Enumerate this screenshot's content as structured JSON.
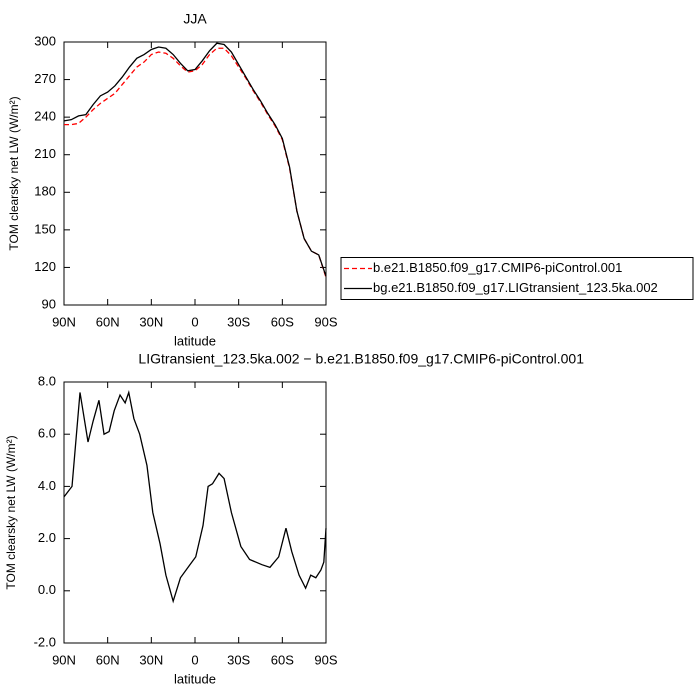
{
  "chart_data": [
    {
      "type": "line",
      "title": "JJA",
      "xlabel": "latitude",
      "ylabel": "TOM clearsky net LW (W/m²)",
      "x": [
        90,
        85,
        80,
        75,
        70,
        65,
        60,
        55,
        50,
        45,
        40,
        35,
        30,
        25,
        20,
        15,
        10,
        5,
        0,
        -5,
        -10,
        -15,
        -20,
        -25,
        -30,
        -35,
        -40,
        -45,
        -50,
        -55,
        -60,
        -65,
        -70,
        -75,
        -80,
        -85,
        -90
      ],
      "series": [
        {
          "name": "b.e21.B1850.f09_g17.CMIP6-piControl.001",
          "color": "#ff0000",
          "linestyle": "dashed",
          "values": [
            234,
            234,
            235,
            240,
            246,
            251,
            255,
            259,
            266,
            273,
            280,
            284,
            290,
            292,
            291,
            287,
            281,
            276,
            277,
            282,
            290,
            295,
            295,
            289,
            280,
            271,
            261,
            252,
            242,
            233,
            222,
            199,
            165,
            143,
            133,
            130,
            112
          ]
        },
        {
          "name": "bg.e21.B1850.f09_g17.LIGtransient_123.5ka.002",
          "color": "#000000",
          "linestyle": "solid",
          "values": [
            237,
            238,
            241,
            242,
            250,
            257,
            260,
            265,
            272,
            280,
            287,
            290,
            294,
            296,
            295,
            290,
            283,
            277,
            278,
            285,
            293,
            299,
            298,
            292,
            282,
            272,
            262,
            253,
            243,
            234,
            223,
            200,
            165,
            143,
            133,
            130,
            113
          ]
        }
      ],
      "xlim": [
        90,
        -90
      ],
      "xticks": [
        {
          "value": 90,
          "label": "90N"
        },
        {
          "value": 60,
          "label": "60N"
        },
        {
          "value": 30,
          "label": "30N"
        },
        0,
        {
          "value": -30,
          "label": "30S"
        },
        {
          "value": -60,
          "label": "60S"
        },
        {
          "value": -90,
          "label": "90S"
        }
      ],
      "ylim": [
        90,
        300
      ],
      "yticks": [
        90,
        120,
        150,
        180,
        210,
        240,
        270,
        300
      ],
      "legend": "right"
    },
    {
      "type": "line",
      "title": "LIGtransient_123.5ka.002 − b.e21.B1850.f09_g17.CMIP6-piControl.001",
      "xlabel": "latitude",
      "ylabel": "TOM clearsky net LW (W/m²)",
      "x": [
        90,
        84.5,
        79,
        73.5,
        70,
        66,
        62.5,
        59,
        55.5,
        51.5,
        48,
        45.5,
        42,
        38,
        33,
        29,
        24,
        20,
        17,
        15,
        10,
        3.5,
        -0.5,
        -5.5,
        -9,
        -12,
        -16.5,
        -20,
        -25,
        -31.5,
        -37.5,
        -46,
        -51.5,
        -57.5,
        -62.5,
        -66.5,
        -71.5,
        -76,
        -79.5,
        -83,
        -86.5,
        -88.5,
        -90
      ],
      "values": [
        3.6,
        4.0,
        7.6,
        5.7,
        6.5,
        7.3,
        6.0,
        6.1,
        6.9,
        7.5,
        7.2,
        7.6,
        6.6,
        6.0,
        4.8,
        3.0,
        1.8,
        0.6,
        0.0,
        -0.4,
        0.5,
        1.0,
        1.3,
        2.5,
        4.0,
        4.1,
        4.5,
        4.3,
        3.0,
        1.7,
        1.2,
        1.0,
        0.9,
        1.3,
        2.4,
        1.5,
        0.6,
        0.1,
        0.6,
        0.5,
        0.8,
        1.1,
        2.4
      ],
      "color": "#000000",
      "xlim": [
        90,
        -90
      ],
      "xticks": [
        {
          "value": 90,
          "label": "90N"
        },
        {
          "value": 60,
          "label": "60N"
        },
        {
          "value": 30,
          "label": "30N"
        },
        0,
        {
          "value": -30,
          "label": "30S"
        },
        {
          "value": -60,
          "label": "60S"
        },
        {
          "value": -90,
          "label": "90S"
        }
      ],
      "ylim": [
        -2,
        8
      ],
      "yticks": [
        {
          "value": -2,
          "label": "-2.0"
        },
        {
          "value": 0,
          "label": "0.0"
        },
        {
          "value": 2,
          "label": "2.0"
        },
        {
          "value": 4,
          "label": "4.0"
        },
        {
          "value": 6,
          "label": "6.0"
        },
        {
          "value": 8,
          "label": "8.0"
        }
      ]
    }
  ]
}
